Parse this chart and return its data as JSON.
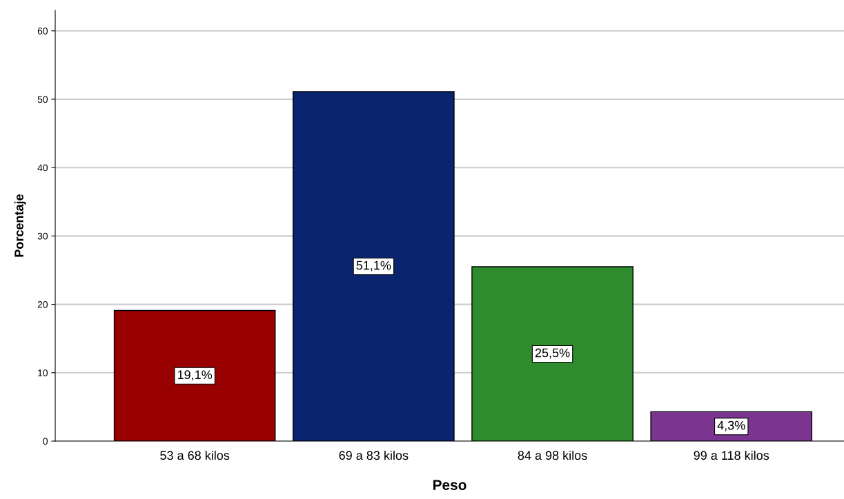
{
  "chart_data": {
    "type": "bar",
    "xlabel": "Peso",
    "ylabel": "Porcentaje",
    "categories": [
      "53 a 68 kilos",
      "69 a 83 kilos",
      "84 a 98 kilos",
      "99 a 118 kilos"
    ],
    "values": [
      19.1,
      51.1,
      25.5,
      4.3
    ],
    "colors": [
      "#990000",
      "#0b2470",
      "#2e8b2e",
      "#7b3590"
    ],
    "value_labels": [
      "19,1%",
      "51,1%",
      "25,5%",
      "4,3%"
    ],
    "ylim": [
      0,
      63
    ],
    "yticks": [
      0,
      10,
      20,
      30,
      40,
      50,
      60
    ],
    "grid": "y",
    "legend": false
  }
}
